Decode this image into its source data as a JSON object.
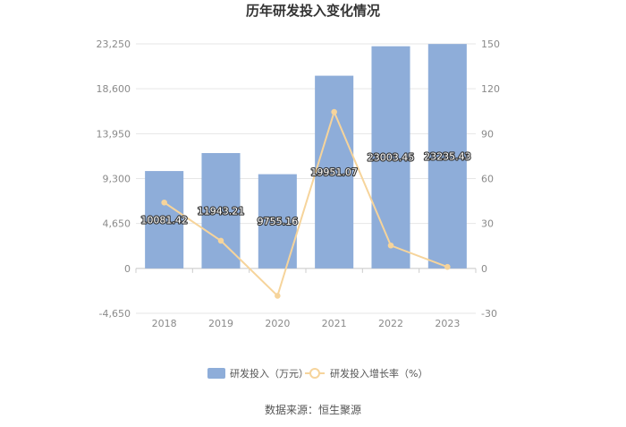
{
  "chart_data": {
    "type": "bar",
    "title": "历年研发投入变化情况",
    "categories": [
      "2018",
      "2019",
      "2020",
      "2021",
      "2022",
      "2023"
    ],
    "series": [
      {
        "name": "研发投入（万元）",
        "type": "bar",
        "axis": "left",
        "color": "#8eadd9",
        "values": [
          10081.42,
          11943.21,
          9755.16,
          19951.07,
          23003.45,
          23235.43
        ],
        "labels": [
          "10081.42",
          "11943.21",
          "9755.16",
          "19951.07",
          "23003.45",
          "23235.43"
        ]
      },
      {
        "name": "研发投入增长率（%）",
        "type": "line",
        "axis": "right",
        "color": "#f6d49b",
        "values": [
          44,
          18.5,
          -18.3,
          104.5,
          15.3,
          1.0
        ]
      }
    ],
    "y_left": {
      "ylim": [
        -4650,
        23250
      ],
      "ticks": [
        -4650,
        0,
        4650,
        9300,
        13950,
        18600,
        23250
      ],
      "tick_labels": [
        "-4,650",
        "0",
        "4,650",
        "9,300",
        "13,950",
        "18,600",
        "23,250"
      ]
    },
    "y_right": {
      "ylim": [
        -30,
        150
      ],
      "ticks": [
        -30,
        0,
        30,
        60,
        90,
        120,
        150
      ],
      "tick_labels": [
        "-30",
        "0",
        "30",
        "60",
        "90",
        "120",
        "150"
      ]
    },
    "grid": true,
    "legend_position": "bottom-center"
  },
  "source": "数据来源：恒生聚源"
}
